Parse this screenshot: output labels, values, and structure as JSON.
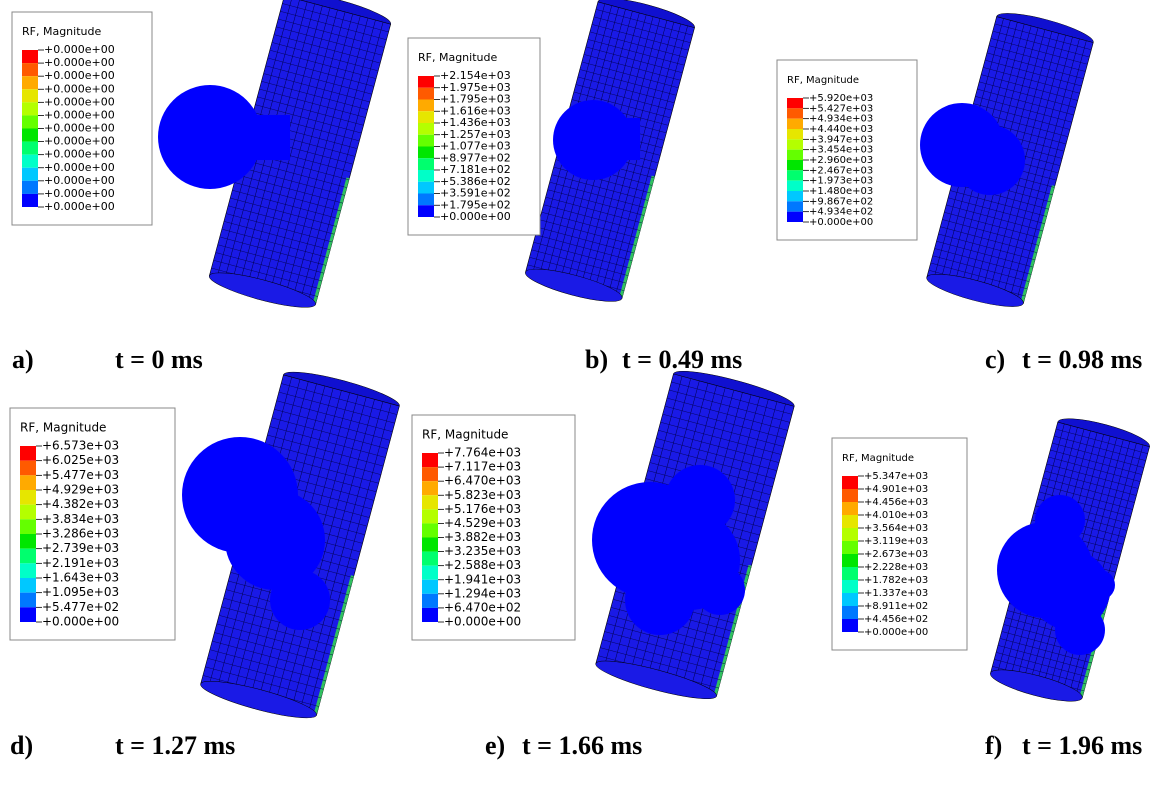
{
  "panels": [
    {
      "label": "a)",
      "time": "t = 0 ms",
      "legend": {
        "title": "RF, Magnitude",
        "labels": [
          "+0.000e+00",
          "+0.000e+00",
          "+0.000e+00",
          "+0.000e+00",
          "+0.000e+00",
          "+0.000e+00",
          "+0.000e+00",
          "+0.000e+00",
          "+0.000e+00",
          "+0.000e+00",
          "+0.000e+00",
          "+0.000e+00",
          "+0.000e+00"
        ]
      }
    },
    {
      "label": "b)",
      "time": "t = 0.49 ms",
      "legend": {
        "title": "RF, Magnitude",
        "labels": [
          "+2.154e+03",
          "+1.975e+03",
          "+1.795e+03",
          "+1.616e+03",
          "+1.436e+03",
          "+1.257e+03",
          "+1.077e+03",
          "+8.977e+02",
          "+7.181e+02",
          "+5.386e+02",
          "+3.591e+02",
          "+1.795e+02",
          "+0.000e+00"
        ]
      }
    },
    {
      "label": "c)",
      "time": "t = 0.98 ms",
      "legend": {
        "title": "RF, Magnitude",
        "labels": [
          "+5.920e+03",
          "+5.427e+03",
          "+4.934e+03",
          "+4.440e+03",
          "+3.947e+03",
          "+3.454e+03",
          "+2.960e+03",
          "+2.467e+03",
          "+1.973e+03",
          "+1.480e+03",
          "+9.867e+02",
          "+4.934e+02",
          "+0.000e+00"
        ]
      }
    },
    {
      "label": "d)",
      "time": "t = 1.27 ms",
      "legend": {
        "title": "RF, Magnitude",
        "labels": [
          "+6.573e+03",
          "+6.025e+03",
          "+5.477e+03",
          "+4.929e+03",
          "+4.382e+03",
          "+3.834e+03",
          "+3.286e+03",
          "+2.739e+03",
          "+2.191e+03",
          "+1.643e+03",
          "+1.095e+03",
          "+5.477e+02",
          "+0.000e+00"
        ]
      }
    },
    {
      "label": "e)",
      "time": "t = 1.66 ms",
      "legend": {
        "title": "RF, Magnitude",
        "labels": [
          "+7.764e+03",
          "+7.117e+03",
          "+6.470e+03",
          "+5.823e+03",
          "+5.176e+03",
          "+4.529e+03",
          "+3.882e+03",
          "+3.235e+03",
          "+2.588e+03",
          "+1.941e+03",
          "+1.294e+03",
          "+6.470e+02",
          "+0.000e+00"
        ]
      }
    },
    {
      "label": "f)",
      "time": "t = 1.96 ms",
      "legend": {
        "title": "RF, Magnitude",
        "labels": [
          "+5.347e+03",
          "+4.901e+03",
          "+4.456e+03",
          "+4.010e+03",
          "+3.564e+03",
          "+3.119e+03",
          "+2.673e+03",
          "+2.228e+03",
          "+1.782e+03",
          "+1.337e+03",
          "+8.911e+02",
          "+4.456e+02",
          "+0.000e+00"
        ]
      }
    }
  ]
}
